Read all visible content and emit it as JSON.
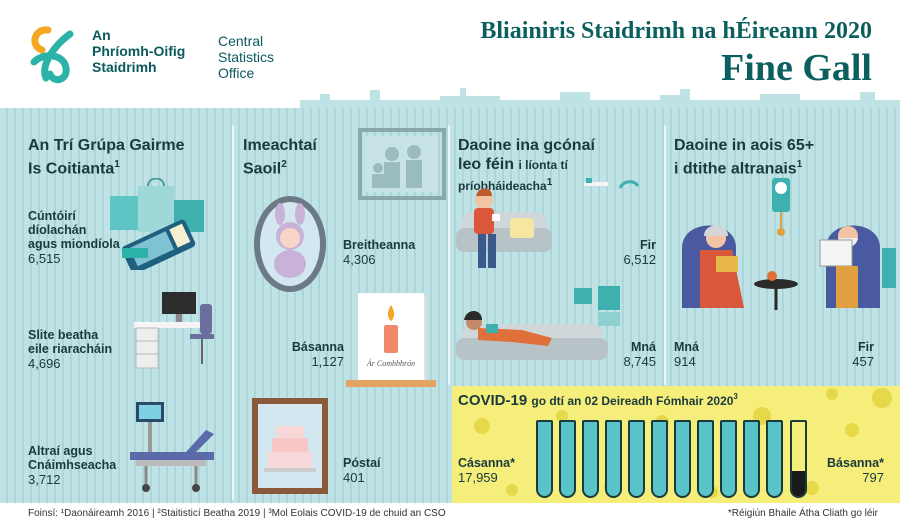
{
  "header": {
    "logo_irish_line1": "An",
    "logo_irish_line2": "Phríomh-Oifig",
    "logo_irish_line3": "Staidrimh",
    "logo_english_line1": "Central",
    "logo_english_line2": "Statistics",
    "logo_english_line3": "Office",
    "title": "Bliainiris Staidrimh na hÉireann 2020",
    "subtitle": "Fine Gall"
  },
  "panel1": {
    "title_line1": "An Trí Grúpa Gairme",
    "title_line2": "Is Coitianta",
    "title_sup": "1",
    "items": [
      {
        "label1": "Cúntóirí",
        "label2": "díolachán",
        "label3": "agus miondíola",
        "value": "6,515"
      },
      {
        "label1": "Slite beatha",
        "label2": "eile riaracháin",
        "value": "4,696"
      },
      {
        "label1": "Altraí agus",
        "label2": "Cnáimhseacha",
        "value": "3,712"
      }
    ]
  },
  "panel2": {
    "title_line1": "Imeachtaí",
    "title_line2": "Saoil",
    "title_sup": "2",
    "births_label": "Breitheanna",
    "births_value": "4,306",
    "deaths_label": "Básanna",
    "deaths_value": "1,127",
    "marriages_label": "Póstaí",
    "marriages_value": "401",
    "card_text": "Ár Comhbhrón"
  },
  "panel3": {
    "title_line1": "Daoine ina gcónaí",
    "title_line2a": "leo féin",
    "title_line2b": "i líonta tí",
    "title_line3": "príobháideacha",
    "title_sup": "1",
    "men_label": "Fir",
    "men_value": "6,512",
    "women_label": "Mná",
    "women_value": "8,745"
  },
  "panel4": {
    "title_line1": "Daoine in aois 65+",
    "title_line2": "i dtithe altranais",
    "title_sup": "1",
    "women_label": "Mná",
    "women_value": "914",
    "men_label": "Fir",
    "men_value": "457"
  },
  "covid": {
    "title_bold": "COVID-19",
    "title_rest": "go dtí an 02 Deireadh Fómhair 2020",
    "title_sup": "3",
    "cases_label": "Cásanna*",
    "cases_value": "17,959",
    "deaths_label": "Básanna*",
    "deaths_value": "797"
  },
  "footer": {
    "sources": "Foinsí: ¹Daonáireamh 2016 | ²Staitisticí Beatha 2019 | ³Mol Eolais COVID-19 de chuid an CSO",
    "note": "*Réigiún Bhaile Átha Cliath go léir"
  },
  "colors": {
    "teal_dark": "#0b5f5f",
    "background": "#bfe2e4",
    "covid_yellow": "#f5ee7a",
    "tube_fill": "#58c4c9",
    "logo_orange": "#f5a623",
    "logo_teal": "#2bb3a8"
  }
}
